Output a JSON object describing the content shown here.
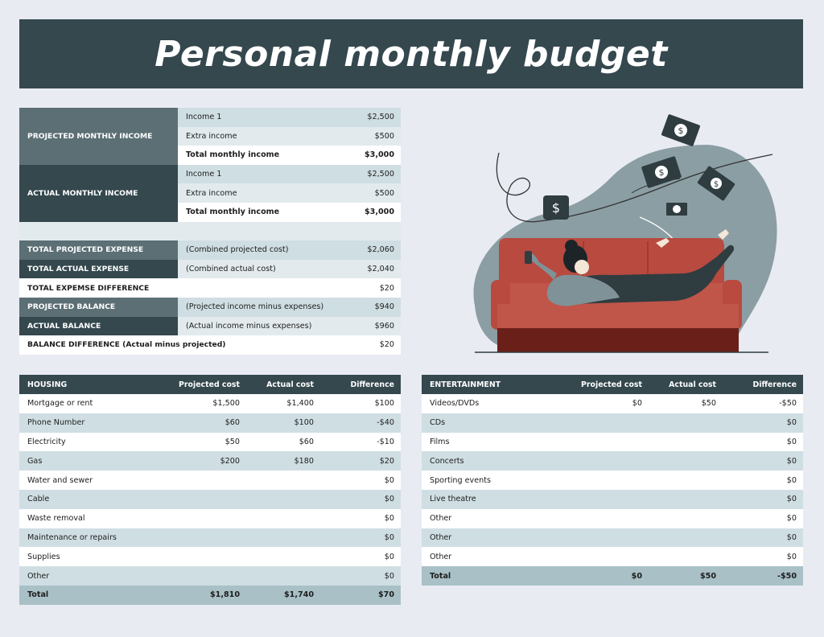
{
  "title": "Personal monthly budget",
  "income": {
    "projected": {
      "label": "PROJECTED MONTHLY INCOME",
      "items": [
        {
          "name": "Income 1",
          "value": "$2,500"
        },
        {
          "name": "Extra income",
          "value": "$500"
        },
        {
          "name": "Total monthly income",
          "value": "$3,000"
        }
      ]
    },
    "actual": {
      "label": "ACTUAL MONTHLY INCOME",
      "items": [
        {
          "name": "Income 1",
          "value": "$2,500"
        },
        {
          "name": "Extra income",
          "value": "$500"
        },
        {
          "name": "Total monthly income",
          "value": "$3,000"
        }
      ]
    }
  },
  "expense_summary": [
    {
      "label": "TOTAL PROJECTED EXPENSE",
      "desc": "(Combined projected cost)",
      "value": "$2,060"
    },
    {
      "label": "TOTAL ACTUAL EXPENSE",
      "desc": "(Combined actual cost)",
      "value": "$2,040"
    },
    {
      "label": "TOTAL EXPEMSE DIFFERENCE",
      "desc": "",
      "value": "$20"
    },
    {
      "label": "PROJECTED BALANCE",
      "desc": "(Projected income minus expenses)",
      "value": "$940"
    },
    {
      "label": "ACTUAL BALANCE",
      "desc": "(Actual income minus expenses)",
      "value": "$960"
    },
    {
      "label": "BALANCE DIFFERENCE (Actual minus projected)",
      "desc": "",
      "value": "$20"
    }
  ],
  "housing": {
    "headers": [
      "HOUSING",
      "Projected cost",
      "Actual cost",
      "Difference"
    ],
    "rows": [
      [
        "Mortgage or rent",
        "$1,500",
        "$1,400",
        "$100"
      ],
      [
        "Phone Number",
        "$60",
        "$100",
        "-$40"
      ],
      [
        "Electricity",
        "$50",
        "$60",
        "-$10"
      ],
      [
        "Gas",
        "$200",
        "$180",
        "$20"
      ],
      [
        "Water and sewer",
        "",
        "",
        "$0"
      ],
      [
        "Cable",
        "",
        "",
        "$0"
      ],
      [
        "Waste removal",
        "",
        "",
        "$0"
      ],
      [
        "Maintenance or repairs",
        "",
        "",
        "$0"
      ],
      [
        "Supplies",
        "",
        "",
        "$0"
      ],
      [
        "Other",
        "",
        "",
        "$0"
      ]
    ],
    "total": [
      "Total",
      "$1,810",
      "$1,740",
      "$70"
    ]
  },
  "entertainment": {
    "headers": [
      "ENTERTAINMENT",
      "Projected cost",
      "Actual cost",
      "Difference"
    ],
    "rows": [
      [
        "Videos/DVDs",
        "$0",
        "$50",
        "-$50"
      ],
      [
        "CDs",
        "",
        "",
        "$0"
      ],
      [
        "Films",
        "",
        "",
        "$0"
      ],
      [
        "Concerts",
        "",
        "",
        "$0"
      ],
      [
        "Sporting events",
        "",
        "",
        "$0"
      ],
      [
        "Live theatre",
        "",
        "",
        "$0"
      ],
      [
        "Other",
        "",
        "",
        "$0"
      ],
      [
        "Other",
        "",
        "",
        "$0"
      ],
      [
        "Other",
        "",
        "",
        "$0"
      ]
    ],
    "total": [
      "Total",
      "$0",
      "$50",
      "-$50"
    ]
  },
  "illustration": {
    "money_icon": "$"
  },
  "colors": {
    "header": "#34484e",
    "row_light": "#cfdee3",
    "total_row": "#a8c0c6",
    "sofa": "#c0554a",
    "background": "#e9ebf3"
  }
}
